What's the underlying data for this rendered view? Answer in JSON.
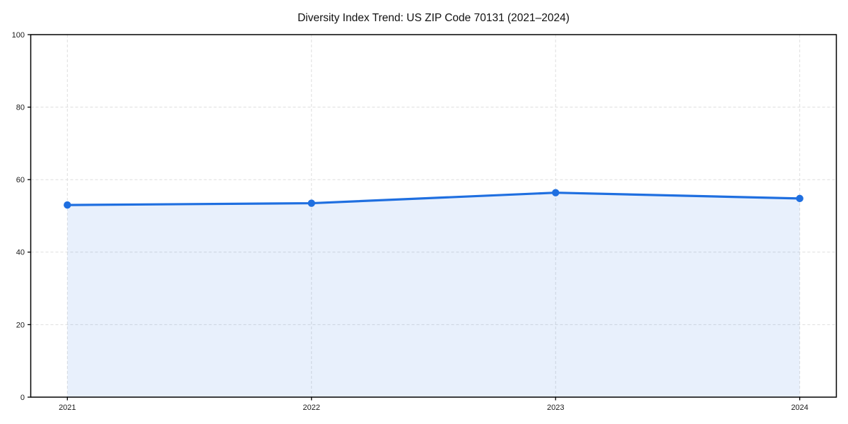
{
  "page": {
    "background_color": "#ffffff"
  },
  "chart_data": {
    "type": "area",
    "title": "Diversity Index Trend: US ZIP Code 70131 (2021–2024)",
    "x": [
      2021,
      2022,
      2023,
      2024
    ],
    "x_labels": [
      "2021",
      "2022",
      "2023",
      "2024"
    ],
    "values": [
      53.0,
      53.5,
      56.4,
      54.8
    ],
    "series_name": "Diversity Index",
    "xlabel": "",
    "ylabel": "",
    "ylim": [
      0,
      100
    ],
    "yticks": [
      0,
      20,
      40,
      60,
      80,
      100
    ],
    "ytick_labels": [
      "0",
      "20",
      "40",
      "60",
      "80",
      "100"
    ],
    "grid": true,
    "grid_style": "dashed",
    "legend_position": "none",
    "colors": {
      "line": "#1f6fe0",
      "marker": "#1f6fe0",
      "fill": "#1f6fe0",
      "fill_opacity": 0.1,
      "grid": "#dedede",
      "spine": "#000000",
      "tick_label": "#1a1a1a",
      "title": "#111111",
      "background": "#ffffff"
    }
  }
}
